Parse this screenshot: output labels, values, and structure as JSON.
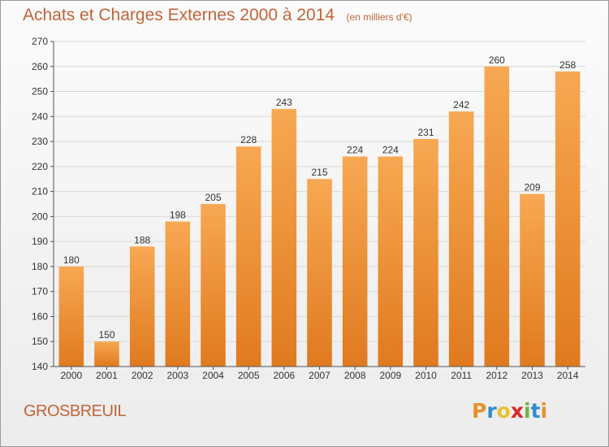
{
  "title": "Achats et Charges Externes 2000 à 2014",
  "subtitle": "(en milliers d'€)",
  "place": "GROSBREUIL",
  "logo": {
    "letters": [
      "P",
      "r",
      "o",
      "x",
      "i",
      "t",
      "i"
    ],
    "colors": [
      "#e8902c",
      "#2f8ecf",
      "#e8c02c",
      "#d9262b",
      "#6db33f",
      "#2f8ecf",
      "#e8902c"
    ]
  },
  "colors": {
    "bar_light": "#f7a852",
    "bar_dark": "#e07a1f",
    "text": "#c0643a",
    "grid": "#d8d8d8"
  },
  "chart_data": {
    "type": "bar",
    "categories": [
      "2000",
      "2001",
      "2002",
      "2003",
      "2004",
      "2005",
      "2006",
      "2007",
      "2008",
      "2009",
      "2010",
      "2011",
      "2012",
      "2013",
      "2014"
    ],
    "values": [
      180,
      150,
      188,
      198,
      205,
      228,
      243,
      215,
      224,
      224,
      231,
      242,
      260,
      209,
      258
    ],
    "ylim": [
      140,
      270
    ],
    "yticks": [
      140,
      150,
      160,
      170,
      180,
      190,
      200,
      210,
      220,
      230,
      240,
      250,
      260,
      270
    ],
    "grid": true
  }
}
